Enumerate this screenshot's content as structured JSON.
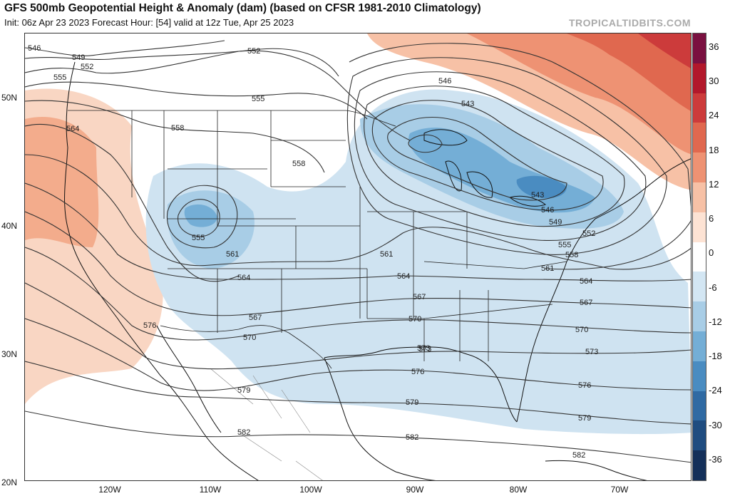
{
  "header": {
    "title": "GFS 500mb Geopotential Height & Anomaly (dam) (based on CFSR 1981-2010 Climatology)",
    "subtitle": "Init: 06z Apr 23 2023   Forecast Hour: [54]   valid at 12z Tue, Apr 25 2023",
    "credit": "TROPICALTIDBITS.COM"
  },
  "axes": {
    "lat_labels": [
      "50N",
      "40N",
      "30N",
      "20N"
    ],
    "lon_labels": [
      "120W",
      "110W",
      "100W",
      "90W",
      "80W",
      "70W"
    ]
  },
  "colorbar": {
    "ticks": [
      "36",
      "30",
      "24",
      "18",
      "12",
      "6",
      "0",
      "-6",
      "-12",
      "-18",
      "-24",
      "-30",
      "-36"
    ],
    "colors": [
      "#7a1040",
      "#b2182b",
      "#cc3b3b",
      "#e0684f",
      "#ee9273",
      "#f7c1a6",
      "#fde3d4",
      "#ffffff",
      "#d3e6f3",
      "#a8cde6",
      "#74aed6",
      "#4a8cc1",
      "#2f6aa3",
      "#1f4c80",
      "#14305a"
    ]
  },
  "contour_labels": [
    {
      "text": "546"
    },
    {
      "text": "549"
    },
    {
      "text": "552"
    },
    {
      "text": "555"
    },
    {
      "text": "564"
    },
    {
      "text": "552"
    },
    {
      "text": "558"
    },
    {
      "text": "555"
    },
    {
      "text": "558"
    },
    {
      "text": "555"
    },
    {
      "text": "561"
    },
    {
      "text": "564"
    },
    {
      "text": "567"
    },
    {
      "text": "570"
    },
    {
      "text": "576"
    },
    {
      "text": "579"
    },
    {
      "text": "582"
    },
    {
      "text": "546"
    },
    {
      "text": "543"
    },
    {
      "text": "543"
    },
    {
      "text": "546"
    },
    {
      "text": "549"
    },
    {
      "text": "552"
    },
    {
      "text": "555"
    },
    {
      "text": "558"
    },
    {
      "text": "561"
    },
    {
      "text": "561"
    },
    {
      "text": "564"
    },
    {
      "text": "567"
    },
    {
      "text": "570"
    },
    {
      "text": "573"
    },
    {
      "text": "576"
    },
    {
      "text": "579"
    },
    {
      "text": "564"
    },
    {
      "text": "567"
    },
    {
      "text": "570"
    },
    {
      "text": "573"
    },
    {
      "text": "576"
    },
    {
      "text": "579"
    },
    {
      "text": "582"
    },
    {
      "text": "582"
    },
    {
      "text": "573"
    }
  ]
}
